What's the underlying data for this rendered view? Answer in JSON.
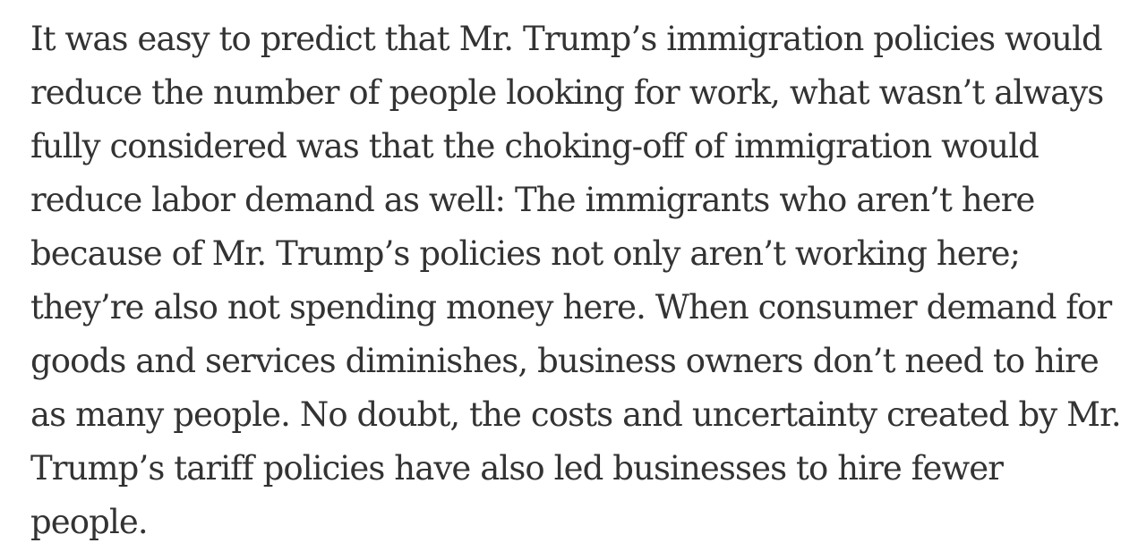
{
  "article": {
    "paragraph_lines": [
      "It was easy to predict that Mr. Trump’s immigration policies would",
      "reduce the number of people looking for work, what wasn’t always",
      "fully considered was that the choking-off of immigration would",
      "reduce labor demand as well: The immigrants who aren’t here",
      "because of Mr. Trump’s policies not only aren’t working here;",
      "they’re also not spending money here. When consumer demand for",
      "goods and services diminishes, business owners don’t need to hire",
      "as many people. No doubt, the costs and uncertainty created by Mr.",
      "Trump’s tariff policies have also led businesses to hire fewer",
      "people."
    ]
  }
}
